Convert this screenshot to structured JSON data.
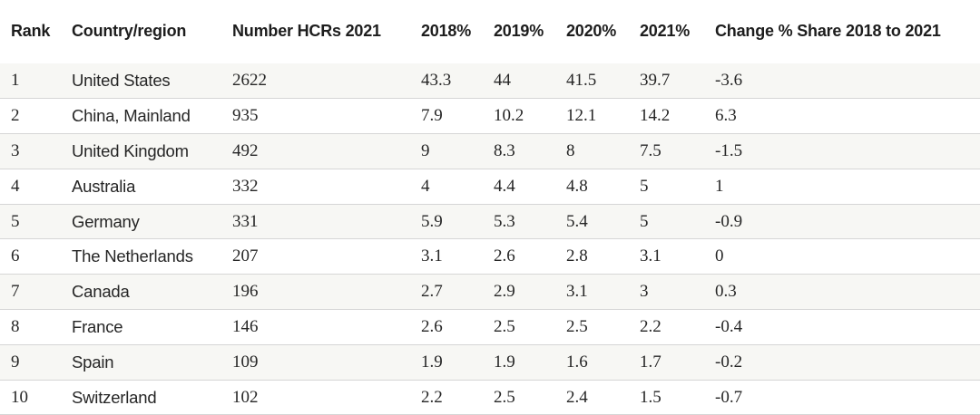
{
  "table": {
    "headers": {
      "rank": "Rank",
      "country": "Country/region",
      "number": "Number HCRs 2021",
      "y2018": "2018%",
      "y2019": "2019%",
      "y2020": "2020%",
      "y2021": "2021%",
      "change": "Change % Share 2018 to 2021"
    },
    "rows": [
      {
        "rank": "1",
        "country": "United States",
        "number": "2622",
        "y2018": "43.3",
        "y2019": "44",
        "y2020": "41.5",
        "y2021": "39.7",
        "change": "-3.6"
      },
      {
        "rank": "2",
        "country": "China, Mainland",
        "number": "935",
        "y2018": "7.9",
        "y2019": "10.2",
        "y2020": "12.1",
        "y2021": "14.2",
        "change": "6.3"
      },
      {
        "rank": "3",
        "country": "United Kingdom",
        "number": "492",
        "y2018": "9",
        "y2019": "8.3",
        "y2020": "8",
        "y2021": "7.5",
        "change": "-1.5"
      },
      {
        "rank": "4",
        "country": "Australia",
        "number": "332",
        "y2018": "4",
        "y2019": "4.4",
        "y2020": "4.8",
        "y2021": "5",
        "change": "1"
      },
      {
        "rank": "5",
        "country": "Germany",
        "number": "331",
        "y2018": "5.9",
        "y2019": "5.3",
        "y2020": "5.4",
        "y2021": "5",
        "change": "-0.9"
      },
      {
        "rank": "6",
        "country": "The Netherlands",
        "number": "207",
        "y2018": "3.1",
        "y2019": "2.6",
        "y2020": "2.8",
        "y2021": "3.1",
        "change": "0"
      },
      {
        "rank": "7",
        "country": "Canada",
        "number": "196",
        "y2018": "2.7",
        "y2019": "2.9",
        "y2020": "3.1",
        "y2021": "3",
        "change": "0.3"
      },
      {
        "rank": "8",
        "country": "France",
        "number": "146",
        "y2018": "2.6",
        "y2019": "2.5",
        "y2020": "2.5",
        "y2021": "2.2",
        "change": "-0.4"
      },
      {
        "rank": "9",
        "country": "Spain",
        "number": "109",
        "y2018": "1.9",
        "y2019": "1.9",
        "y2020": "1.6",
        "y2021": "1.7",
        "change": "-0.2"
      },
      {
        "rank": "10",
        "country": "Switzerland",
        "number": "102",
        "y2018": "2.2",
        "y2019": "2.5",
        "y2020": "2.4",
        "y2021": "1.5",
        "change": "-0.7"
      }
    ]
  }
}
